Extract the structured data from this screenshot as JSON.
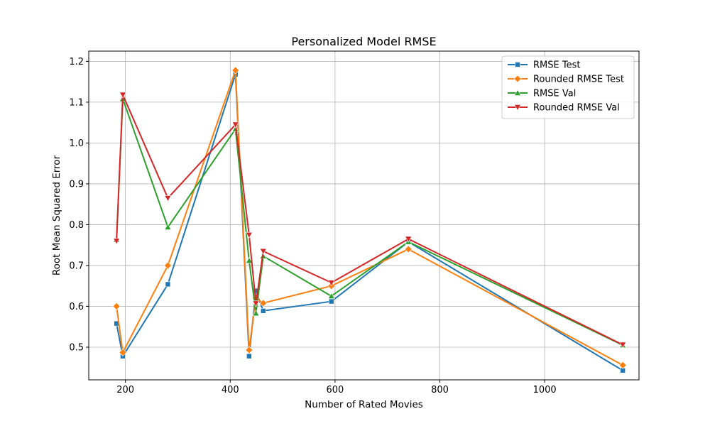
{
  "chart_data": {
    "type": "line",
    "title": "Personalized Model RMSE",
    "xlabel": "Number of Rated Movies",
    "ylabel": "Root Mean Squared Error",
    "xlim": [
      130,
      1180
    ],
    "ylim": [
      0.42,
      1.225
    ],
    "xticks": [
      200,
      400,
      600,
      800,
      1000
    ],
    "yticks": [
      0.5,
      0.6,
      0.7,
      0.8,
      0.9,
      1.0,
      1.1,
      1.2
    ],
    "ytick_labels": [
      "0.5",
      "0.6",
      "0.7",
      "0.8",
      "0.9",
      "1.0",
      "1.1",
      "1.2"
    ],
    "grid": true,
    "legend_position": "top-right",
    "x": [
      183,
      195,
      281,
      410,
      436,
      449,
      463,
      593,
      740,
      1149
    ],
    "series": [
      {
        "name": "RMSE Test",
        "color": "#1f77b4",
        "marker": "square",
        "values": [
          0.558,
          0.478,
          0.654,
          1.168,
          0.478,
          0.638,
          0.589,
          0.612,
          0.758,
          0.443
        ]
      },
      {
        "name": "Rounded RMSE Test",
        "color": "#ff7f0e",
        "marker": "diamond",
        "values": [
          0.6,
          0.487,
          0.7,
          1.178,
          0.493,
          0.62,
          0.608,
          0.65,
          0.74,
          0.456
        ]
      },
      {
        "name": "RMSE Val",
        "color": "#2ca02c",
        "marker": "triangle-up",
        "values": [
          0.763,
          1.108,
          0.794,
          1.034,
          0.712,
          0.583,
          0.723,
          0.625,
          0.758,
          0.505
        ]
      },
      {
        "name": "Rounded RMSE Val",
        "color": "#d62728",
        "marker": "triangle-down",
        "values": [
          0.76,
          1.118,
          0.865,
          1.045,
          0.775,
          0.607,
          0.735,
          0.658,
          0.765,
          0.506
        ]
      }
    ]
  }
}
